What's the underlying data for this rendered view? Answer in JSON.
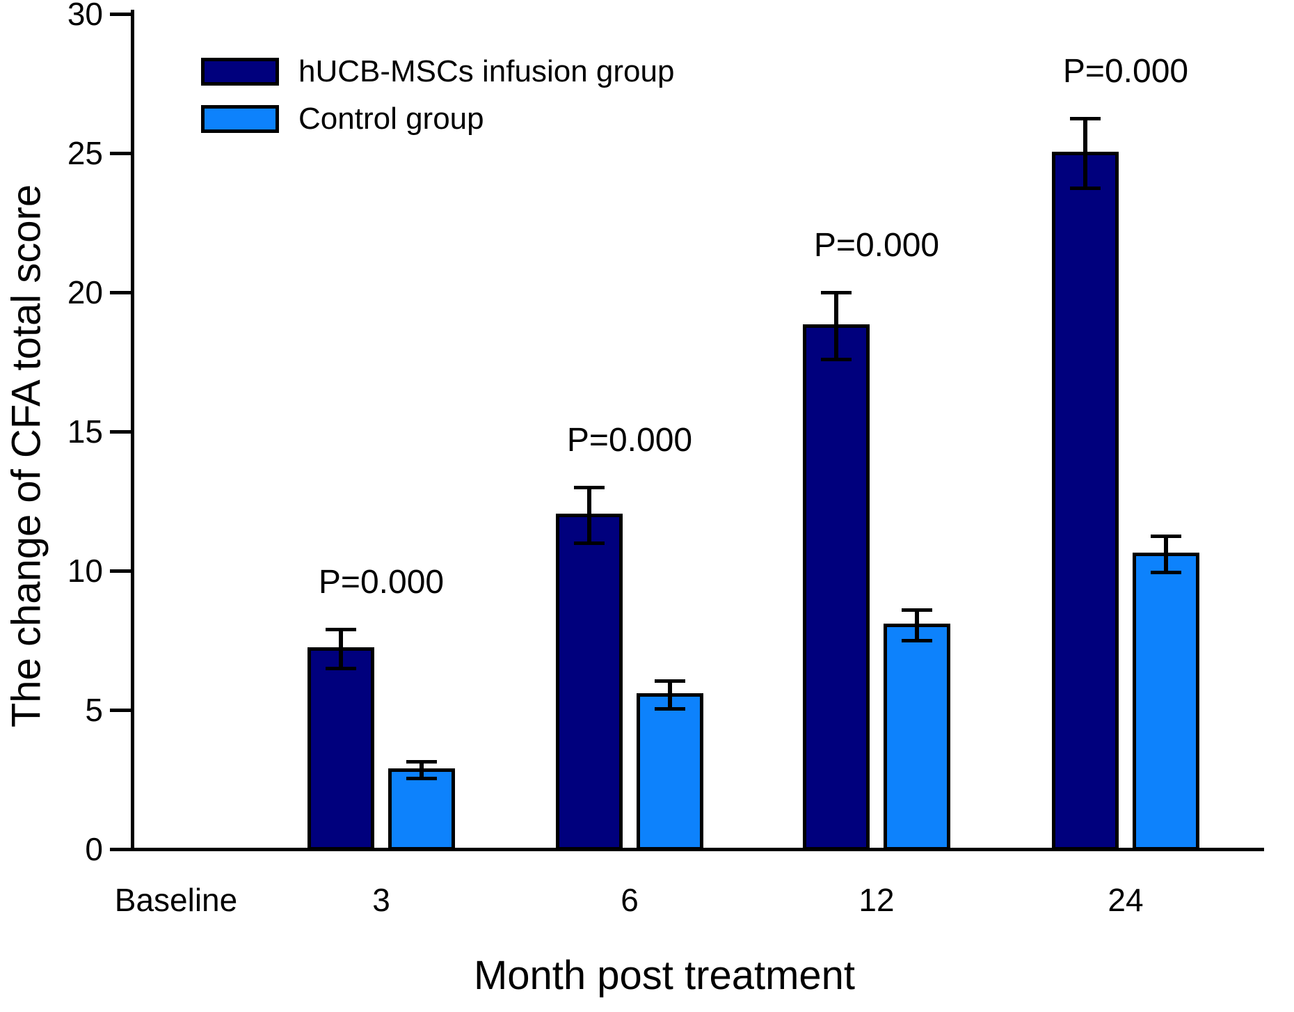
{
  "figure": {
    "background": "#ffffff"
  },
  "legend": {
    "position": "top-left",
    "items": [
      {
        "label": "hUCB-MSCs infusion group",
        "color": "#00007d"
      },
      {
        "label": "Control group",
        "color": "#0d82fc"
      }
    ]
  },
  "chart_data": {
    "type": "bar",
    "title": "",
    "xlabel": "Month post treatment",
    "ylabel": "The change of CFA total score",
    "categories": [
      "Baseline",
      "3",
      "6",
      "12",
      "24"
    ],
    "ylim": [
      0,
      30
    ],
    "yticks": [
      0,
      5,
      10,
      15,
      20,
      25,
      30
    ],
    "grid": false,
    "bar_outline_color": "#000000",
    "error_bar_color": "#000000",
    "series": [
      {
        "name": "hUCB-MSCs infusion group",
        "color": "#00007d",
        "values": [
          null,
          7.2,
          12.0,
          18.8,
          25.0
        ],
        "errors": [
          null,
          0.7,
          1.0,
          1.2,
          1.25
        ]
      },
      {
        "name": "Control group",
        "color": "#0d82fc",
        "values": [
          null,
          2.85,
          5.55,
          8.05,
          10.6
        ],
        "errors": [
          null,
          0.3,
          0.5,
          0.55,
          0.65
        ]
      }
    ],
    "annotations": [
      {
        "category": "3",
        "text": "P=0.000"
      },
      {
        "category": "6",
        "text": "P=0.000"
      },
      {
        "category": "12",
        "text": "P=0.000"
      },
      {
        "category": "24",
        "text": "P=0.000"
      }
    ]
  }
}
